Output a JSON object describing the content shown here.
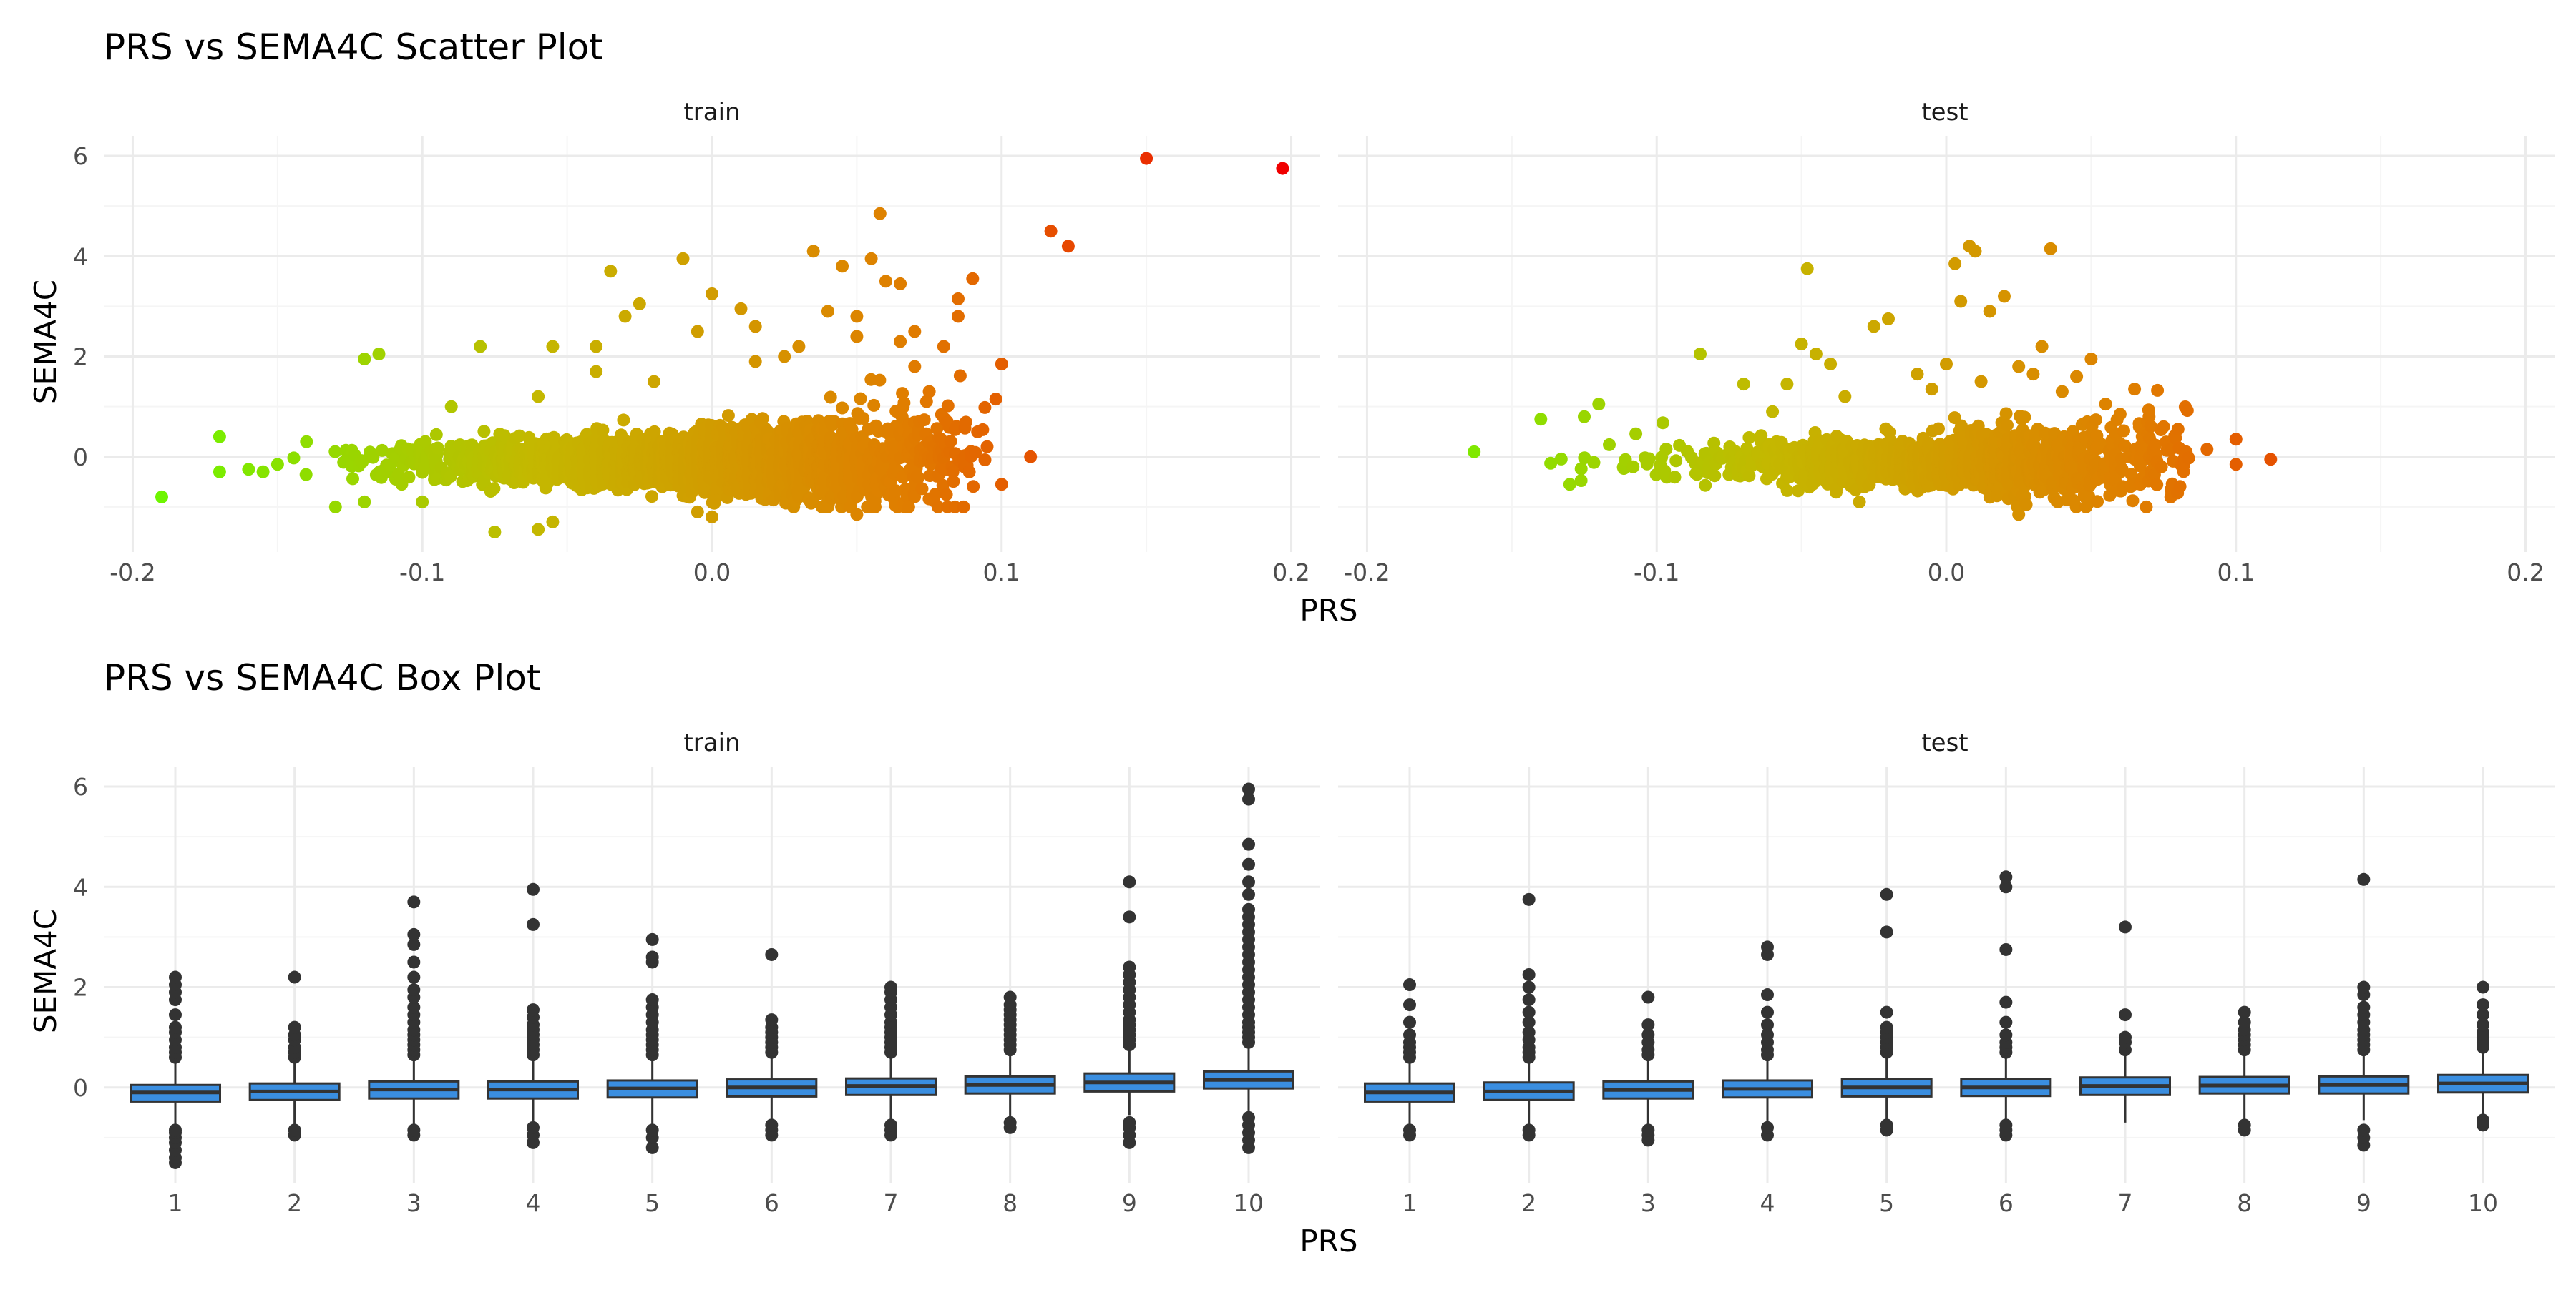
{
  "colors": {
    "grid_major": "#ebebeb",
    "grid_minor": "#f5f5f5",
    "box_fill": "#3a8ee0",
    "box_stroke": "#333333",
    "outlier": "#333333",
    "gradient": [
      "#6ef500",
      "#c4b800",
      "#e07d00",
      "#f00000"
    ]
  },
  "chart_data": [
    {
      "type": "scatter",
      "title": "PRS vs SEMA4C Scatter Plot",
      "xlabel": "PRS",
      "ylabel": "SEMA4C",
      "facets": [
        "train",
        "test"
      ],
      "xlim": [
        -0.21,
        0.21
      ],
      "ylim": [
        -1.9,
        6.4
      ],
      "x_ticks": [
        -0.2,
        -0.1,
        0.0,
        0.1,
        0.2
      ],
      "x_tick_labels": [
        "-0.2",
        "-0.1",
        "0.0",
        "0.1",
        "0.2"
      ],
      "y_ticks": [
        0,
        2,
        4,
        6
      ],
      "y_tick_labels": [
        "0",
        "2",
        "4",
        "6"
      ],
      "grid": true,
      "color_by": "x",
      "bulk_cloud": {
        "train": {
          "n": 2600,
          "x_mean": -0.005,
          "x_sd": 0.045,
          "x_range": [
            -0.145,
            0.095
          ],
          "y_center": -0.1,
          "y_sd_base": 0.22,
          "y_sd_slope": 3.5
        },
        "test": {
          "n": 1400,
          "x_mean": 0.0,
          "x_sd": 0.042,
          "x_range": [
            -0.14,
            0.085
          ],
          "y_center": -0.1,
          "y_sd_base": 0.22,
          "y_sd_slope": 2.5
        }
      },
      "series": [
        {
          "facet": "train",
          "points": [
            [
              -0.19,
              -0.8
            ],
            [
              -0.17,
              0.4
            ],
            [
              -0.17,
              -0.3
            ],
            [
              -0.16,
              -0.25
            ],
            [
              -0.155,
              -0.3
            ],
            [
              -0.15,
              -0.15
            ],
            [
              -0.14,
              0.3
            ],
            [
              -0.12,
              -0.9
            ],
            [
              -0.12,
              1.95
            ],
            [
              -0.115,
              2.05
            ],
            [
              -0.09,
              1.0
            ],
            [
              -0.08,
              2.2
            ],
            [
              -0.075,
              -1.5
            ],
            [
              -0.06,
              1.2
            ],
            [
              -0.06,
              -1.45
            ],
            [
              -0.055,
              -1.3
            ],
            [
              -0.055,
              2.2
            ],
            [
              -0.04,
              2.2
            ],
            [
              -0.04,
              1.7
            ],
            [
              -0.035,
              3.7
            ],
            [
              -0.03,
              2.8
            ],
            [
              -0.025,
              3.05
            ],
            [
              -0.02,
              1.5
            ],
            [
              -0.01,
              3.95
            ],
            [
              -0.005,
              2.5
            ],
            [
              -0.005,
              -1.1
            ],
            [
              0.0,
              3.25
            ],
            [
              0.0,
              -1.2
            ],
            [
              0.01,
              2.95
            ],
            [
              0.015,
              2.6
            ],
            [
              0.015,
              1.9
            ],
            [
              0.025,
              2.0
            ],
            [
              0.03,
              2.2
            ],
            [
              0.035,
              4.1
            ],
            [
              0.04,
              2.9
            ],
            [
              0.04,
              -1.0
            ],
            [
              0.045,
              3.8
            ],
            [
              0.05,
              2.8
            ],
            [
              0.05,
              2.4
            ],
            [
              0.055,
              3.95
            ],
            [
              0.058,
              4.85
            ],
            [
              0.06,
              3.5
            ],
            [
              0.065,
              3.45
            ],
            [
              0.065,
              2.3
            ],
            [
              0.07,
              2.5
            ],
            [
              0.07,
              1.8
            ],
            [
              0.075,
              1.3
            ],
            [
              0.08,
              2.2
            ],
            [
              0.085,
              3.15
            ],
            [
              0.085,
              2.8
            ],
            [
              0.09,
              3.55
            ],
            [
              0.095,
              0.2
            ],
            [
              0.098,
              1.15
            ],
            [
              0.1,
              1.85
            ],
            [
              0.1,
              -0.55
            ],
            [
              0.11,
              0.0
            ],
            [
              0.117,
              4.5
            ],
            [
              0.123,
              4.2
            ],
            [
              0.15,
              5.95
            ],
            [
              0.197,
              5.75
            ],
            [
              0.05,
              -1.15
            ],
            [
              -0.1,
              -0.9
            ],
            [
              -0.13,
              -1.0
            ]
          ]
        },
        {
          "facet": "test",
          "points": [
            [
              -0.163,
              0.1
            ],
            [
              -0.14,
              0.75
            ],
            [
              -0.13,
              -0.55
            ],
            [
              -0.125,
              0.8
            ],
            [
              -0.12,
              1.05
            ],
            [
              -0.085,
              2.05
            ],
            [
              -0.07,
              1.45
            ],
            [
              -0.06,
              0.9
            ],
            [
              -0.055,
              1.45
            ],
            [
              -0.05,
              2.25
            ],
            [
              -0.048,
              3.75
            ],
            [
              -0.045,
              2.05
            ],
            [
              -0.04,
              1.85
            ],
            [
              -0.035,
              1.2
            ],
            [
              -0.025,
              2.6
            ],
            [
              -0.02,
              2.75
            ],
            [
              -0.01,
              1.65
            ],
            [
              -0.005,
              1.35
            ],
            [
              0.0,
              1.85
            ],
            [
              0.003,
              3.85
            ],
            [
              0.005,
              3.1
            ],
            [
              0.008,
              4.2
            ],
            [
              0.01,
              4.1
            ],
            [
              0.012,
              1.5
            ],
            [
              0.015,
              2.9
            ],
            [
              0.02,
              3.2
            ],
            [
              0.025,
              1.8
            ],
            [
              0.03,
              1.65
            ],
            [
              0.033,
              2.2
            ],
            [
              0.036,
              4.15
            ],
            [
              0.04,
              1.3
            ],
            [
              0.045,
              1.6
            ],
            [
              0.05,
              1.95
            ],
            [
              0.055,
              1.05
            ],
            [
              0.06,
              0.85
            ],
            [
              0.065,
              1.35
            ],
            [
              0.07,
              0.8
            ],
            [
              0.075,
              0.6
            ],
            [
              0.08,
              0.55
            ],
            [
              0.09,
              0.15
            ],
            [
              0.1,
              0.35
            ],
            [
              0.1,
              -0.15
            ],
            [
              0.112,
              -0.05
            ],
            [
              0.025,
              -1.15
            ],
            [
              -0.03,
              -0.9
            ]
          ]
        }
      ]
    },
    {
      "type": "box",
      "title": "PRS vs SEMA4C Box Plot",
      "xlabel": "PRS",
      "ylabel": "SEMA4C",
      "facets": [
        "train",
        "test"
      ],
      "categories": [
        "1",
        "2",
        "3",
        "4",
        "5",
        "6",
        "7",
        "8",
        "9",
        "10"
      ],
      "ylim": [
        -1.9,
        6.4
      ],
      "y_ticks": [
        0,
        2,
        4,
        6
      ],
      "y_tick_labels": [
        "0",
        "2",
        "4",
        "6"
      ],
      "grid": true,
      "series": [
        {
          "facet": "train",
          "boxes": [
            {
              "q1": -0.28,
              "median": -0.1,
              "q3": 0.05,
              "wmin": -0.75,
              "wmax": 0.55,
              "outliers": [
                -1.5,
                -1.4,
                -1.25,
                -1.1,
                -1.0,
                -0.9,
                -0.85,
                0.6,
                0.7,
                0.8,
                0.95,
                1.1,
                1.2,
                1.45,
                1.75,
                1.9,
                2.05,
                2.2
              ]
            },
            {
              "q1": -0.25,
              "median": -0.08,
              "q3": 0.08,
              "wmin": -0.75,
              "wmax": 0.55,
              "outliers": [
                -0.95,
                -0.85,
                0.6,
                0.7,
                0.8,
                0.95,
                1.05,
                1.2,
                2.2
              ]
            },
            {
              "q1": -0.22,
              "median": -0.04,
              "q3": 0.12,
              "wmin": -0.75,
              "wmax": 0.6,
              "outliers": [
                -0.95,
                -0.85,
                0.65,
                0.75,
                0.85,
                0.95,
                1.05,
                1.15,
                1.3,
                1.45,
                1.6,
                1.8,
                1.95,
                2.2,
                2.5,
                2.85,
                3.05,
                3.7
              ]
            },
            {
              "q1": -0.22,
              "median": -0.04,
              "q3": 0.12,
              "wmin": -0.75,
              "wmax": 0.6,
              "outliers": [
                -1.1,
                -0.95,
                -0.8,
                0.65,
                0.75,
                0.85,
                0.95,
                1.05,
                1.15,
                1.25,
                1.4,
                1.55,
                3.25,
                3.95
              ]
            },
            {
              "q1": -0.2,
              "median": -0.02,
              "q3": 0.14,
              "wmin": -0.75,
              "wmax": 0.6,
              "outliers": [
                -1.2,
                -1.0,
                -0.85,
                0.65,
                0.75,
                0.85,
                0.95,
                1.05,
                1.15,
                1.3,
                1.45,
                1.6,
                1.75,
                2.5,
                2.6,
                2.95
              ]
            },
            {
              "q1": -0.18,
              "median": 0.0,
              "q3": 0.16,
              "wmin": -0.7,
              "wmax": 0.65,
              "outliers": [
                -0.95,
                -0.85,
                -0.75,
                0.7,
                0.8,
                0.9,
                1.0,
                1.1,
                1.2,
                1.35,
                2.65
              ]
            },
            {
              "q1": -0.15,
              "median": 0.03,
              "q3": 0.18,
              "wmin": -0.7,
              "wmax": 0.65,
              "outliers": [
                -0.95,
                -0.85,
                -0.75,
                0.7,
                0.8,
                0.9,
                1.0,
                1.1,
                1.2,
                1.3,
                1.45,
                1.6,
                1.75,
                1.9,
                2.0
              ]
            },
            {
              "q1": -0.12,
              "median": 0.05,
              "q3": 0.22,
              "wmin": -0.65,
              "wmax": 0.7,
              "outliers": [
                -0.8,
                -0.7,
                0.75,
                0.85,
                0.95,
                1.05,
                1.15,
                1.25,
                1.35,
                1.45,
                1.55,
                1.65,
                1.8
              ]
            },
            {
              "q1": -0.08,
              "median": 0.1,
              "q3": 0.28,
              "wmin": -0.55,
              "wmax": 0.8,
              "outliers": [
                -1.1,
                -0.95,
                -0.8,
                -0.7,
                0.85,
                0.95,
                1.05,
                1.15,
                1.25,
                1.35,
                1.5,
                1.65,
                1.8,
                1.95,
                2.1,
                2.25,
                2.4,
                3.4,
                4.1
              ]
            },
            {
              "q1": -0.02,
              "median": 0.15,
              "q3": 0.32,
              "wmin": -0.5,
              "wmax": 0.85,
              "outliers": [
                -1.2,
                -1.05,
                -0.9,
                -0.75,
                -0.6,
                0.9,
                1.0,
                1.1,
                1.2,
                1.3,
                1.45,
                1.6,
                1.75,
                1.9,
                2.05,
                2.2,
                2.35,
                2.5,
                2.65,
                2.8,
                2.95,
                3.1,
                3.25,
                3.4,
                3.55,
                3.85,
                4.1,
                4.45,
                4.85,
                5.75,
                5.95
              ]
            }
          ]
        },
        {
          "facet": "test",
          "boxes": [
            {
              "q1": -0.28,
              "median": -0.1,
              "q3": 0.08,
              "wmin": -0.75,
              "wmax": 0.55,
              "outliers": [
                -0.95,
                -0.85,
                0.6,
                0.7,
                0.8,
                0.9,
                1.05,
                1.3,
                1.65,
                2.05
              ]
            },
            {
              "q1": -0.25,
              "median": -0.08,
              "q3": 0.1,
              "wmin": -0.75,
              "wmax": 0.55,
              "outliers": [
                -0.95,
                -0.85,
                0.6,
                0.7,
                0.8,
                0.95,
                1.1,
                1.3,
                1.5,
                1.75,
                2.0,
                2.25,
                3.75
              ]
            },
            {
              "q1": -0.22,
              "median": -0.05,
              "q3": 0.12,
              "wmin": -0.75,
              "wmax": 0.6,
              "outliers": [
                -1.05,
                -0.95,
                -0.85,
                0.65,
                0.75,
                0.9,
                1.05,
                1.25,
                1.8
              ]
            },
            {
              "q1": -0.2,
              "median": -0.03,
              "q3": 0.14,
              "wmin": -0.75,
              "wmax": 0.6,
              "outliers": [
                -0.95,
                -0.8,
                0.65,
                0.75,
                0.9,
                1.05,
                1.25,
                1.5,
                1.85,
                2.65,
                2.8
              ]
            },
            {
              "q1": -0.18,
              "median": 0.0,
              "q3": 0.17,
              "wmin": -0.7,
              "wmax": 0.65,
              "outliers": [
                -0.85,
                -0.75,
                0.7,
                0.8,
                0.9,
                1.0,
                1.1,
                1.2,
                1.5,
                3.1,
                3.85
              ]
            },
            {
              "q1": -0.17,
              "median": 0.0,
              "q3": 0.17,
              "wmin": -0.7,
              "wmax": 0.65,
              "outliers": [
                -0.95,
                -0.85,
                -0.75,
                0.7,
                0.8,
                0.9,
                1.05,
                1.3,
                1.7,
                2.75,
                4.0,
                4.2
              ]
            },
            {
              "q1": -0.15,
              "median": 0.03,
              "q3": 0.2,
              "wmin": -0.7,
              "wmax": 0.7,
              "outliers": [
                0.75,
                0.9,
                1.0,
                1.45,
                3.2
              ]
            },
            {
              "q1": -0.12,
              "median": 0.04,
              "q3": 0.21,
              "wmin": -0.65,
              "wmax": 0.7,
              "outliers": [
                -0.85,
                -0.75,
                0.75,
                0.85,
                0.95,
                1.05,
                1.15,
                1.3,
                1.5
              ]
            },
            {
              "q1": -0.12,
              "median": 0.05,
              "q3": 0.22,
              "wmin": -0.65,
              "wmax": 0.7,
              "outliers": [
                -1.15,
                -1.0,
                -0.85,
                0.75,
                0.85,
                0.95,
                1.05,
                1.15,
                1.3,
                1.45,
                1.6,
                1.85,
                2.0,
                4.15
              ]
            },
            {
              "q1": -0.1,
              "median": 0.08,
              "q3": 0.25,
              "wmin": -0.6,
              "wmax": 0.75,
              "outliers": [
                -0.75,
                -0.65,
                0.8,
                0.9,
                1.0,
                1.1,
                1.25,
                1.45,
                1.65,
                2.0
              ]
            }
          ]
        }
      ]
    }
  ]
}
